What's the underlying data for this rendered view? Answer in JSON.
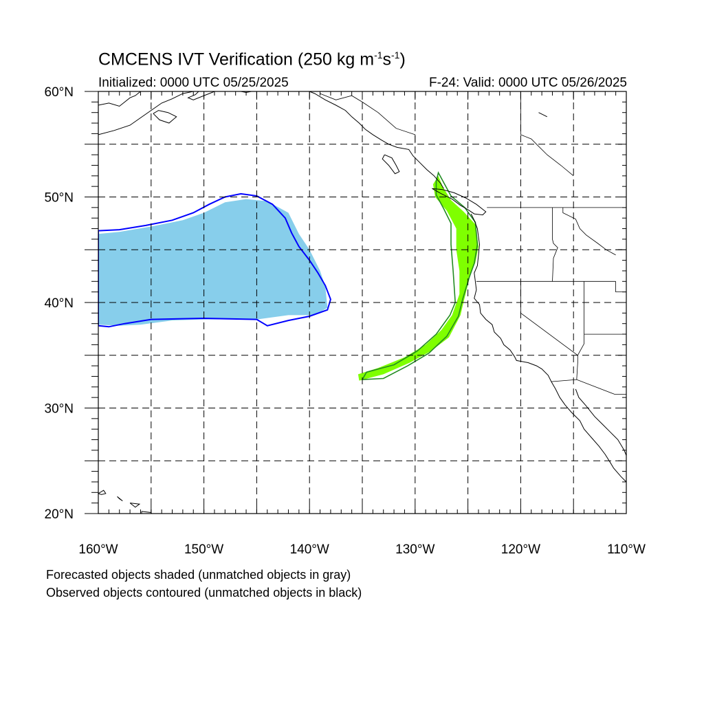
{
  "title": {
    "main": "CMCENS IVT Verification (250 kg m",
    "sup1": "-1",
    "mid": "s",
    "sup2": "-1",
    "close": ")"
  },
  "initialized": "Initialized: 0000 UTC 05/25/2025",
  "valid": "F-24: Valid: 0000 UTC 05/26/2025",
  "notes": [
    "Forecasted objects shaded (unmatched objects in gray)",
    "Observed objects contoured (unmatched objects in black)"
  ],
  "map": {
    "lon_range": [
      -160,
      -110
    ],
    "lat_range": [
      20,
      60
    ],
    "lat_ticks": [
      {
        "value": 60,
        "label": "60°N"
      },
      {
        "value": 50,
        "label": "50°N"
      },
      {
        "value": 40,
        "label": "40°N"
      },
      {
        "value": 30,
        "label": "30°N"
      },
      {
        "value": 20,
        "label": "20°N"
      }
    ],
    "lon_ticks": [
      {
        "value": -160,
        "label": "160°W"
      },
      {
        "value": -150,
        "label": "150°W"
      },
      {
        "value": -140,
        "label": "140°W"
      },
      {
        "value": -130,
        "label": "130°W"
      },
      {
        "value": -120,
        "label": "120°W"
      },
      {
        "value": -110,
        "label": "110°W"
      }
    ],
    "grid_lats": [
      25,
      30,
      35,
      40,
      45,
      50,
      55
    ],
    "grid_lons": [
      -155,
      -150,
      -145,
      -140,
      -135,
      -130,
      -125,
      -120,
      -115
    ],
    "colors": {
      "forecast_object_1": "#87ceeb",
      "observed_contour_1": "#0000ff",
      "forecast_object_2": "#7fff00",
      "observed_contour_2": "#228b22",
      "coastline": "#000000",
      "grid": "#000000"
    },
    "objects": [
      {
        "name": "object-1",
        "forecast_shaded": [
          [
            -160,
            46.5
          ],
          [
            -158,
            46.7
          ],
          [
            -155,
            47.2
          ],
          [
            -152,
            47.8
          ],
          [
            -150,
            48.5
          ],
          [
            -148,
            49.5
          ],
          [
            -146,
            49.8
          ],
          [
            -144,
            49.6
          ],
          [
            -142,
            48.5
          ],
          [
            -141,
            46.5
          ],
          [
            -140,
            45.0
          ],
          [
            -139,
            43.0
          ],
          [
            -138.5,
            41.5
          ],
          [
            -138.3,
            39.5
          ],
          [
            -139.5,
            38.8
          ],
          [
            -142,
            38.8
          ],
          [
            -145,
            38.4
          ],
          [
            -150,
            38.4
          ],
          [
            -153,
            38.3
          ],
          [
            -156,
            37.9
          ],
          [
            -158,
            37.8
          ],
          [
            -160,
            37.9
          ]
        ],
        "observed_contour": [
          [
            -160,
            46.8
          ],
          [
            -158,
            46.9
          ],
          [
            -155.5,
            47.3
          ],
          [
            -153,
            47.8
          ],
          [
            -151,
            48.5
          ],
          [
            -149.5,
            49.3
          ],
          [
            -148,
            50.0
          ],
          [
            -146.5,
            50.3
          ],
          [
            -145,
            50.1
          ],
          [
            -143.5,
            49.3
          ],
          [
            -142.3,
            48.0
          ],
          [
            -141.7,
            46.6
          ],
          [
            -141,
            45.3
          ],
          [
            -140,
            44.0
          ],
          [
            -139.2,
            42.8
          ],
          [
            -138.5,
            41.6
          ],
          [
            -138,
            40.3
          ],
          [
            -138.3,
            39.3
          ],
          [
            -140,
            38.7
          ],
          [
            -142,
            38.3
          ],
          [
            -144,
            37.8
          ],
          [
            -145,
            38.4
          ],
          [
            -150,
            38.5
          ],
          [
            -155,
            38.4
          ],
          [
            -157.5,
            38.0
          ],
          [
            -159,
            37.7
          ],
          [
            -160,
            37.8
          ]
        ]
      },
      {
        "name": "object-2",
        "forecast_shaded": [
          [
            -127.8,
            52.0
          ],
          [
            -127.4,
            51.0
          ],
          [
            -126.6,
            49.7
          ],
          [
            -125.4,
            48.6
          ],
          [
            -124.3,
            47.4
          ],
          [
            -124.0,
            45.3
          ],
          [
            -124.3,
            43.8
          ],
          [
            -124.8,
            42.5
          ],
          [
            -125.3,
            40.5
          ],
          [
            -125.7,
            38.8
          ],
          [
            -126.8,
            36.7
          ],
          [
            -128.5,
            35.4
          ],
          [
            -130.5,
            34.3
          ],
          [
            -133.0,
            33.2
          ],
          [
            -135.3,
            32.6
          ],
          [
            -135.4,
            33.2
          ],
          [
            -133.5,
            33.8
          ],
          [
            -131.0,
            34.8
          ],
          [
            -129.0,
            36.0
          ],
          [
            -127.5,
            37.4
          ],
          [
            -126.5,
            38.8
          ],
          [
            -125.8,
            40.8
          ],
          [
            -125.8,
            43.0
          ],
          [
            -126.1,
            45.0
          ],
          [
            -126.1,
            47.0
          ],
          [
            -127.0,
            48.7
          ],
          [
            -128.1,
            50.0
          ],
          [
            -128.3,
            51.2
          ]
        ],
        "observed_contour": [
          [
            -127.8,
            52.3
          ],
          [
            -127.2,
            51.2
          ],
          [
            -126.6,
            50.1
          ],
          [
            -125.3,
            49.0
          ],
          [
            -124.3,
            47.6
          ],
          [
            -124.1,
            45.5
          ],
          [
            -124.4,
            43.7
          ],
          [
            -124.9,
            42.3
          ],
          [
            -125.5,
            40.3
          ],
          [
            -125.9,
            38.7
          ],
          [
            -127.0,
            36.8
          ],
          [
            -128.7,
            35.2
          ],
          [
            -130.7,
            34.0
          ],
          [
            -133.0,
            32.8
          ],
          [
            -135.0,
            32.7
          ],
          [
            -134.6,
            33.4
          ],
          [
            -132.0,
            34.1
          ],
          [
            -129.8,
            35.4
          ],
          [
            -128.0,
            37.0
          ],
          [
            -126.7,
            38.8
          ],
          [
            -126.2,
            40.0
          ],
          [
            -126.4,
            43.0
          ],
          [
            -126.6,
            45.5
          ],
          [
            -126.6,
            47.5
          ],
          [
            -127.3,
            48.9
          ],
          [
            -128.0,
            50.2
          ],
          [
            -128.0,
            51.5
          ]
        ]
      }
    ],
    "coastlines": [
      [
        [
          -160,
          55.9
        ],
        [
          -158.5,
          56.3
        ],
        [
          -157,
          56.8
        ],
        [
          -156,
          57.5
        ],
        [
          -155,
          58.2
        ],
        [
          -154,
          58.9
        ],
        [
          -153,
          59.3
        ],
        [
          -152,
          59.8
        ],
        [
          -151,
          60
        ]
      ],
      [
        [
          -160,
          58.7
        ],
        [
          -159,
          58.9
        ],
        [
          -158,
          58.6
        ],
        [
          -157.5,
          59.0
        ],
        [
          -157,
          59.4
        ],
        [
          -156.5,
          59.6
        ],
        [
          -156,
          60
        ]
      ],
      [
        [
          -154.8,
          57.9
        ],
        [
          -154.2,
          57.3
        ],
        [
          -153.3,
          57.0
        ],
        [
          -152.6,
          57.6
        ],
        [
          -153.4,
          58.0
        ],
        [
          -154.3,
          58.2
        ],
        [
          -154.8,
          57.9
        ]
      ],
      [
        [
          -150.5,
          60
        ],
        [
          -150.8,
          59.7
        ],
        [
          -151.5,
          59.4
        ],
        [
          -151.0,
          59.2
        ],
        [
          -150.0,
          59.6
        ],
        [
          -149.5,
          59.8
        ],
        [
          -149,
          60
        ]
      ],
      [
        [
          -146.5,
          60
        ],
        [
          -146,
          59.9
        ],
        [
          -145.5,
          60
        ]
      ],
      [
        [
          -140,
          60
        ],
        [
          -139.5,
          59.8
        ],
        [
          -138.5,
          59.2
        ],
        [
          -137.5,
          58.7
        ],
        [
          -136.6,
          58.2
        ],
        [
          -136,
          57.6
        ],
        [
          -135.3,
          57.0
        ],
        [
          -134.7,
          56.4
        ],
        [
          -134,
          55.9
        ],
        [
          -133.2,
          55.4
        ],
        [
          -132.5,
          55.0
        ],
        [
          -131.7,
          54.7
        ],
        [
          -130.6,
          54.5
        ],
        [
          -130.2,
          53.9
        ],
        [
          -129.6,
          53.3
        ],
        [
          -128.9,
          52.6
        ],
        [
          -128.2,
          52.0
        ],
        [
          -127.6,
          51.3
        ],
        [
          -127.3,
          50.8
        ]
      ],
      [
        [
          -132.9,
          54.0
        ],
        [
          -132.2,
          53.7
        ],
        [
          -131.8,
          53.0
        ],
        [
          -131.5,
          52.4
        ],
        [
          -131.9,
          52.2
        ],
        [
          -132.5,
          53.0
        ],
        [
          -133.1,
          53.6
        ],
        [
          -132.9,
          54.0
        ]
      ],
      [
        [
          -128.4,
          50.8
        ],
        [
          -127.5,
          50.3
        ],
        [
          -126.5,
          49.8
        ],
        [
          -125.7,
          49.2
        ],
        [
          -125.0,
          48.8
        ],
        [
          -124.4,
          48.4
        ],
        [
          -123.6,
          48.3
        ],
        [
          -123.3,
          48.6
        ],
        [
          -124.2,
          49.3
        ],
        [
          -125.2,
          49.9
        ],
        [
          -126.3,
          50.4
        ],
        [
          -127.4,
          50.7
        ],
        [
          -128.4,
          50.8
        ]
      ],
      [
        [
          -124.7,
          48.4
        ],
        [
          -124.4,
          47.8
        ],
        [
          -124.1,
          47.0
        ],
        [
          -124.0,
          46.2
        ],
        [
          -123.9,
          45.5
        ],
        [
          -124.0,
          44.5
        ],
        [
          -124.1,
          43.5
        ],
        [
          -124.4,
          42.8
        ],
        [
          -124.3,
          42.0
        ],
        [
          -124.2,
          41.2
        ],
        [
          -124.4,
          40.4
        ],
        [
          -123.9,
          39.8
        ],
        [
          -123.8,
          39.0
        ],
        [
          -123.3,
          38.4
        ],
        [
          -122.7,
          37.9
        ],
        [
          -122.5,
          37.2
        ],
        [
          -121.9,
          36.6
        ],
        [
          -121.6,
          36.0
        ],
        [
          -121.0,
          35.5
        ],
        [
          -120.6,
          34.9
        ],
        [
          -120.4,
          34.5
        ],
        [
          -119.3,
          34.3
        ],
        [
          -118.5,
          34.0
        ],
        [
          -118.0,
          33.7
        ],
        [
          -117.4,
          33.1
        ],
        [
          -117.1,
          32.5
        ],
        [
          -116.7,
          31.8
        ],
        [
          -116.3,
          31.0
        ],
        [
          -115.8,
          30.3
        ],
        [
          -115.2,
          29.6
        ],
        [
          -114.4,
          28.8
        ],
        [
          -114.0,
          28.0
        ],
        [
          -113.3,
          27.2
        ],
        [
          -112.6,
          26.4
        ],
        [
          -112.0,
          25.6
        ],
        [
          -111.5,
          24.8
        ],
        [
          -111.2,
          24.3
        ],
        [
          -110.5,
          23.5
        ],
        [
          -110,
          23.0
        ]
      ],
      [
        [
          -114.8,
          31.8
        ],
        [
          -114.5,
          31.0
        ],
        [
          -113.8,
          30.2
        ],
        [
          -113.0,
          29.2
        ],
        [
          -112.3,
          28.5
        ],
        [
          -111.5,
          27.7
        ],
        [
          -110.8,
          27.0
        ],
        [
          -110.2,
          26.0
        ],
        [
          -110,
          25.5
        ]
      ],
      [
        [
          -118.3,
          58.0
        ],
        [
          -117.5,
          57.6
        ]
      ],
      [
        [
          -160,
          21.9
        ],
        [
          -159.5,
          22.2
        ],
        [
          -159.3,
          21.9
        ],
        [
          -159.7,
          21.8
        ],
        [
          -160,
          21.9
        ]
      ],
      [
        [
          -158.2,
          21.6
        ],
        [
          -157.7,
          21.2
        ],
        [
          -158.0,
          21.4
        ],
        [
          -158.2,
          21.6
        ]
      ],
      [
        [
          -157.0,
          21.0
        ],
        [
          -156.1,
          20.9
        ],
        [
          -156.5,
          20.6
        ],
        [
          -157.0,
          21.0
        ]
      ],
      [
        [
          -155.9,
          20.2
        ],
        [
          -155.0,
          20.1
        ],
        [
          -154.8,
          19.6
        ],
        [
          -155.5,
          19.0
        ],
        [
          -155.9,
          19.6
        ],
        [
          -155.9,
          20.2
        ]
      ]
    ],
    "borders": [
      [
        [
          -141,
          60
        ],
        [
          -141,
          59.8
        ]
      ],
      [
        [
          -139,
          59.8
        ],
        [
          -137.5,
          59.2
        ],
        [
          -136,
          59.6
        ],
        [
          -135,
          59.0
        ],
        [
          -133.5,
          58.0
        ],
        [
          -131.8,
          56.5
        ],
        [
          -130,
          55.9
        ],
        [
          -130,
          55.1
        ]
      ],
      [
        [
          -123.2,
          49.0
        ],
        [
          -110,
          49.0
        ]
      ],
      [
        [
          -124.2,
          42.0
        ],
        [
          -117,
          42.0
        ],
        [
          -117,
          42
        ],
        [
          -111,
          42
        ]
      ],
      [
        [
          -117.0,
          49.0
        ],
        [
          -117.0,
          46.0
        ],
        [
          -116.9,
          45.6
        ],
        [
          -116.5,
          45.2
        ],
        [
          -116.9,
          44.2
        ],
        [
          -117.0,
          42
        ]
      ],
      [
        [
          -120,
          42.0
        ],
        [
          -120,
          39.0
        ],
        [
          -114.6,
          35.0
        ],
        [
          -114.6,
          34.3
        ],
        [
          -114.7,
          32.7
        ]
      ],
      [
        [
          -117.1,
          32.5
        ],
        [
          -114.7,
          32.7
        ],
        [
          -111.1,
          31.3
        ],
        [
          -110,
          31.3
        ]
      ],
      [
        [
          -114.0,
          42.0
        ],
        [
          -114.0,
          37.0
        ],
        [
          -114.0,
          36.1
        ],
        [
          -114.6,
          35.0
        ]
      ],
      [
        [
          -111,
          45.0
        ],
        [
          -110,
          45.0
        ]
      ],
      [
        [
          -111,
          42
        ],
        [
          -111,
          41
        ],
        [
          -110,
          41
        ]
      ],
      [
        [
          -114,
          37
        ],
        [
          -110,
          37
        ]
      ],
      [
        [
          -120,
          60
        ],
        [
          -120,
          55.9
        ]
      ],
      [
        [
          -114.0,
          60
        ],
        [
          -114,
          60
        ]
      ],
      [
        [
          -120.0,
          55.9
        ],
        [
          -119.0,
          55.5
        ],
        [
          -118.5,
          55.0
        ],
        [
          -117.5,
          54.0
        ],
        [
          -116.2,
          53.0
        ],
        [
          -115.0,
          52.0
        ]
      ],
      [
        [
          -116.0,
          49.0
        ],
        [
          -116.0,
          48.5
        ],
        [
          -114.8,
          47.9
        ],
        [
          -114.4,
          47.0
        ],
        [
          -113.8,
          46.4
        ],
        [
          -112.7,
          45.6
        ],
        [
          -111.9,
          45.0
        ],
        [
          -111.0,
          44.5
        ]
      ]
    ]
  }
}
